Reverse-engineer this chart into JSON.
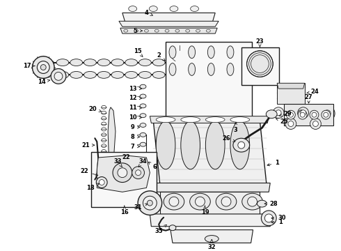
{
  "bg_color": "#ffffff",
  "fig_width": 4.9,
  "fig_height": 3.6,
  "dpi": 100,
  "line_color": "#1a1a1a",
  "label_fontsize": 6.0,
  "label_color": "#000000"
}
